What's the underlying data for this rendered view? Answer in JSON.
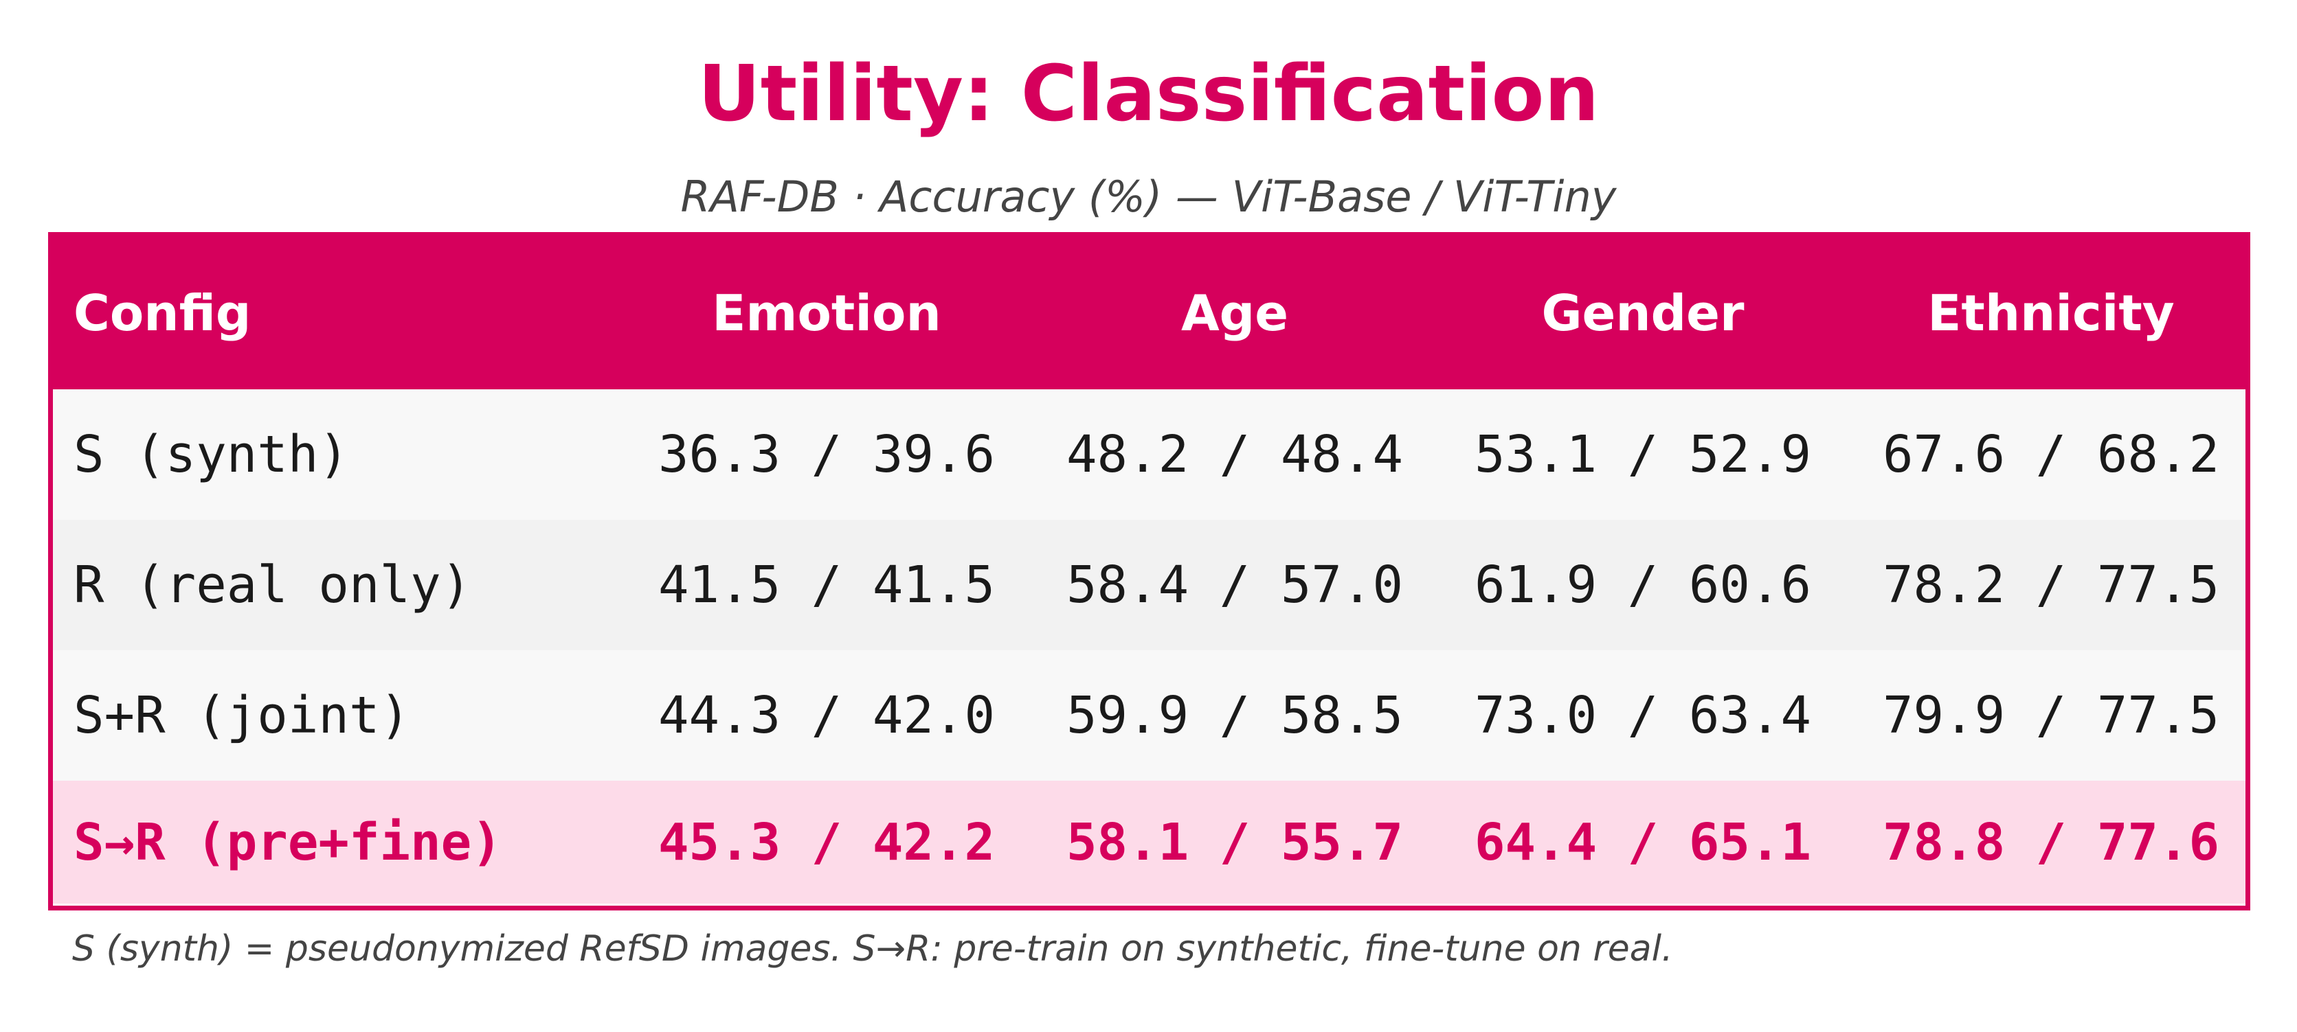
{
  "chart_data": {
    "type": "table",
    "title": "Utility: Classification",
    "subtitle": "RAF-DB  ·  Accuracy (%)  —  ViT-Base / ViT-Tiny",
    "columns": [
      "Config",
      "Emotion",
      "Age",
      "Gender",
      "Ethnicity"
    ],
    "rows": [
      {
        "config": "S (synth)",
        "values": [
          "36.3 / 39.6",
          "48.2 / 48.4",
          "53.1 / 52.9",
          "67.6 / 68.2"
        ],
        "highlight": false
      },
      {
        "config": "R (real only)",
        "values": [
          "41.5 / 41.5",
          "58.4 / 57.0",
          "61.9 / 60.6",
          "78.2 / 77.5"
        ],
        "highlight": false
      },
      {
        "config": "S+R (joint)",
        "values": [
          "44.3 / 42.0",
          "59.9 / 58.5",
          "73.0 / 63.4",
          "79.9 / 77.5"
        ],
        "highlight": false
      },
      {
        "config": "S→R (pre+fine)",
        "values": [
          "45.3 / 42.2",
          "58.1 / 55.7",
          "64.4 / 65.1",
          "78.8 / 77.6"
        ],
        "highlight": true
      }
    ],
    "footnote": "S (synth) = pseudonymized RefSD images.  S→R: pre-train on synthetic, fine-tune on real.",
    "colors": {
      "accent": "#d6005c",
      "highlight_row": "#fddbe9",
      "row_light": "#f8f8f8",
      "row_alt": "#f2f2f2"
    }
  }
}
